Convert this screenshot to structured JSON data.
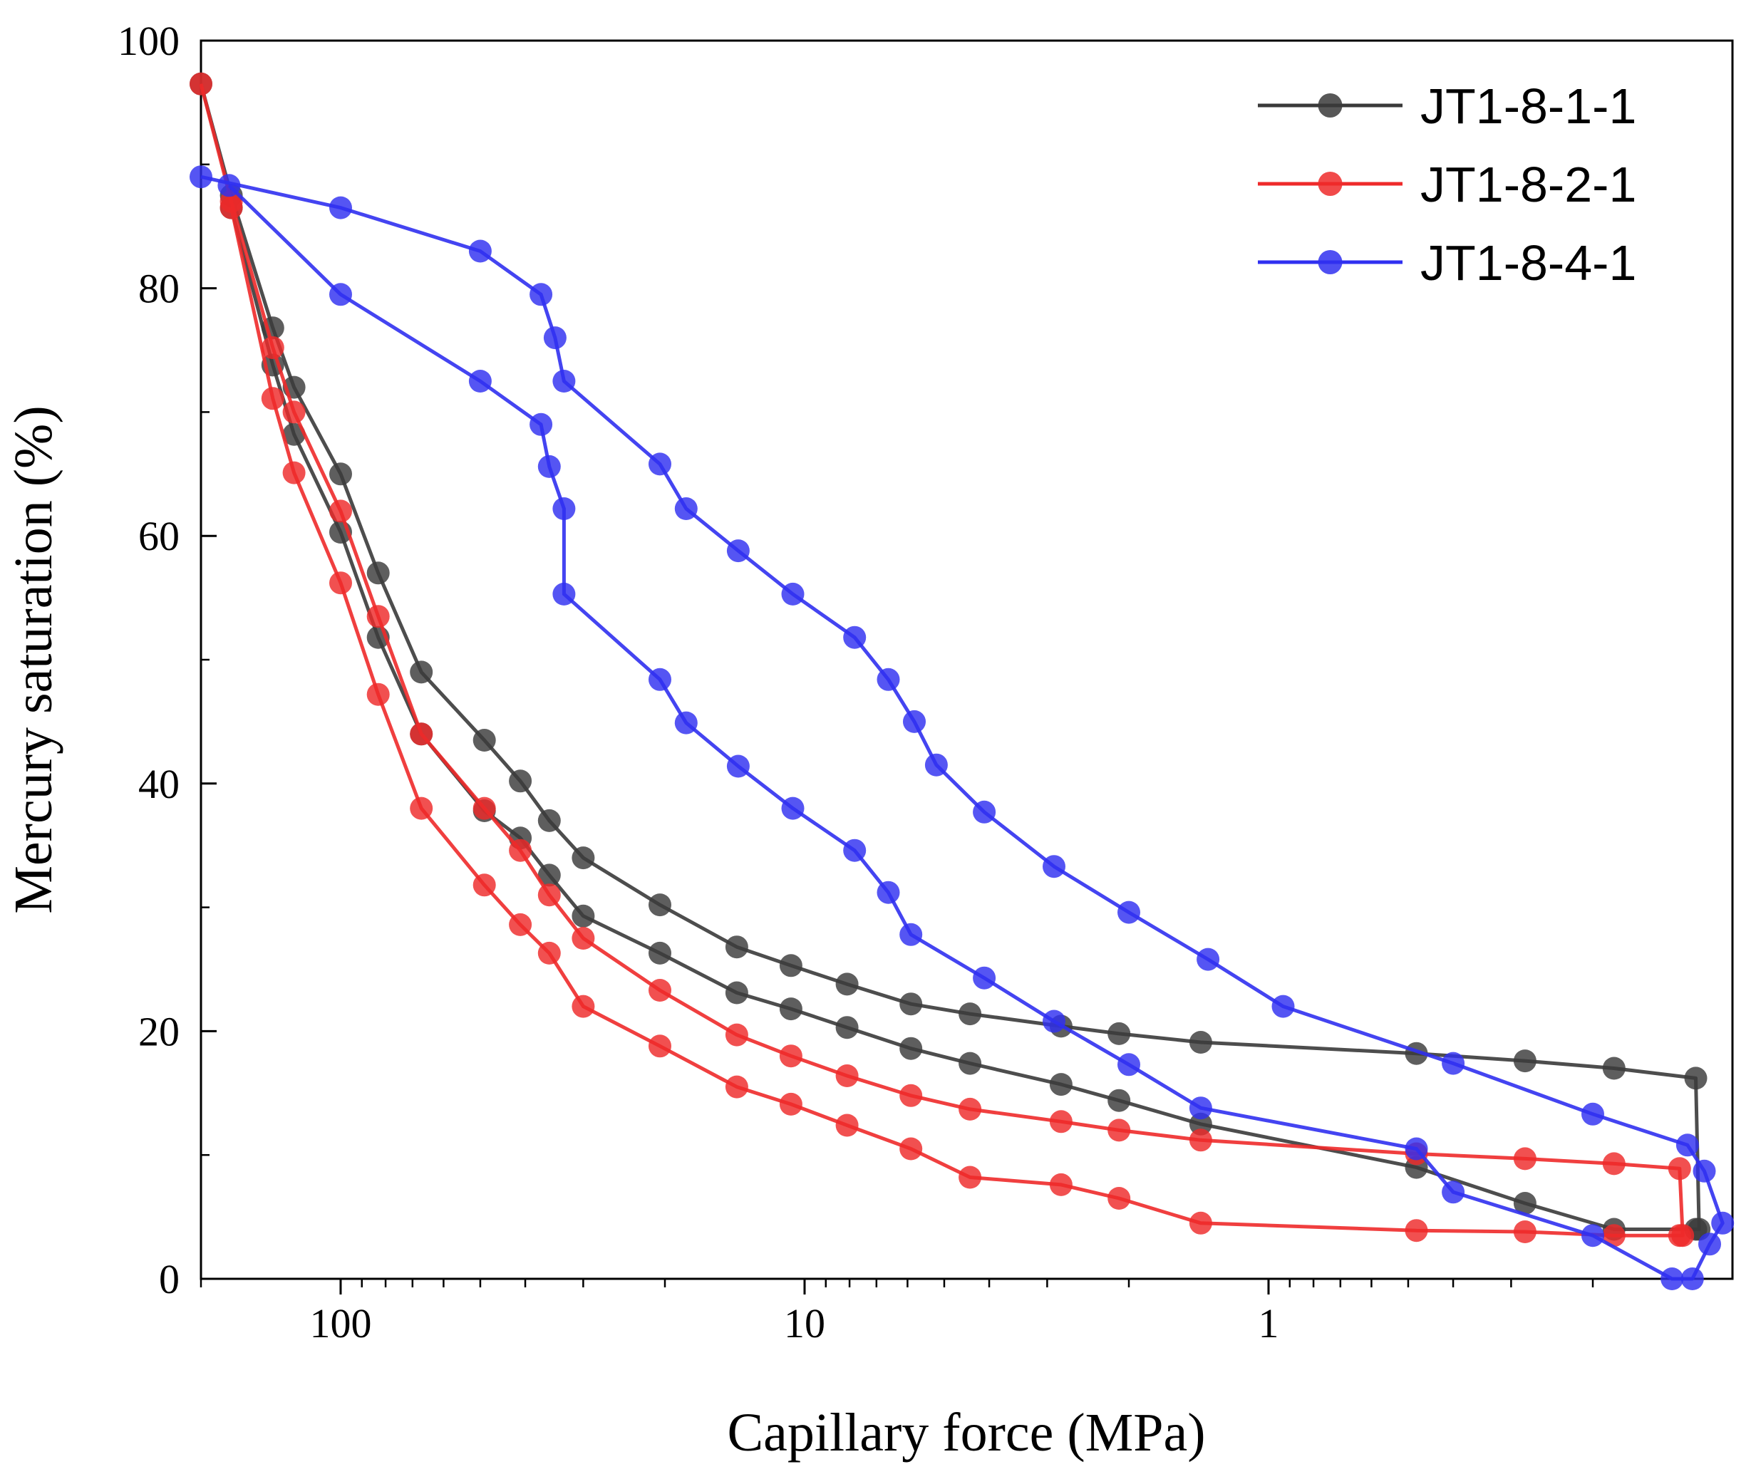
{
  "chart_data": {
    "type": "line",
    "title": "",
    "xlabel": "Capillary force (MPa)",
    "ylabel": "Mercury saturation (%)",
    "xscale": "log",
    "xaxis_reversed": true,
    "xlim": [
      200,
      0.1
    ],
    "ylim": [
      0,
      100
    ],
    "grid": false,
    "legend_position": "top-right",
    "x_ticks": [
      {
        "value": 100,
        "label": "100"
      },
      {
        "value": 10,
        "label": "10"
      },
      {
        "value": 1,
        "label": "1"
      }
    ],
    "x_minor_ticks": [
      200,
      90,
      80,
      70,
      60,
      50,
      40,
      30,
      20,
      9,
      8,
      7,
      6,
      5,
      4,
      3,
      2,
      0.9,
      0.8,
      0.7,
      0.6,
      0.5,
      0.4,
      0.3,
      0.2
    ],
    "y_ticks": [
      {
        "value": 0,
        "label": "0"
      },
      {
        "value": 20,
        "label": "20"
      },
      {
        "value": 40,
        "label": "40"
      },
      {
        "value": 60,
        "label": "60"
      },
      {
        "value": 80,
        "label": "80"
      },
      {
        "value": 100,
        "label": "100"
      }
    ],
    "y_minor_ticks": [
      10,
      30,
      50,
      70,
      90
    ],
    "series": [
      {
        "name": "JT1-8-1-1",
        "color": "#3a3a3a",
        "x": [
          200,
          172,
          140,
          126,
          100,
          83,
          67,
          49,
          41,
          35.5,
          30,
          20.5,
          14,
          10.7,
          8.1,
          5.9,
          4.4,
          2.8,
          2.1,
          1.4,
          0.48,
          0.28,
          0.18,
          0.12,
          0.118,
          0.12,
          0.18,
          0.28,
          0.48,
          1.4,
          2.1,
          2.8,
          4.4,
          5.9,
          8.1,
          10.7,
          14,
          20.5,
          30,
          35.5,
          41,
          49,
          67,
          83,
          100,
          126,
          140,
          172
        ],
        "y": [
          96.5,
          87.5,
          76.8,
          72,
          65,
          57,
          49,
          43.5,
          40.2,
          37,
          34,
          30.2,
          26.8,
          25.3,
          23.8,
          22.2,
          21.4,
          20.4,
          19.8,
          19.1,
          18.2,
          17.6,
          17,
          16.2,
          4,
          4,
          4,
          6.1,
          9,
          12.5,
          14.4,
          15.7,
          17.4,
          18.6,
          20.3,
          21.8,
          23.1,
          26.3,
          29.3,
          32.6,
          35.6,
          37.8,
          44,
          51.8,
          60.3,
          68.2,
          73.8,
          86.5
        ]
      },
      {
        "name": "JT1-8-2-1",
        "color": "#ee2a2a",
        "x": [
          200,
          172,
          140,
          126,
          100,
          83,
          67,
          49,
          41,
          35.5,
          30,
          20.5,
          14,
          10.7,
          8.1,
          5.9,
          4.4,
          2.8,
          2.1,
          1.4,
          0.48,
          0.28,
          0.18,
          0.13,
          0.128,
          0.13,
          0.18,
          0.28,
          0.48,
          1.4,
          2.1,
          2.8,
          4.4,
          5.9,
          8.1,
          10.7,
          14,
          20.5,
          30,
          35.5,
          41,
          49,
          67,
          83,
          100,
          126,
          140,
          172
        ],
        "y": [
          96.5,
          87,
          75.2,
          70,
          62,
          53.5,
          44,
          38,
          34.6,
          31,
          27.5,
          23.3,
          19.7,
          18.0,
          16.4,
          14.8,
          13.7,
          12.7,
          12.0,
          11.2,
          10.1,
          9.7,
          9.3,
          8.9,
          3.5,
          3.5,
          3.5,
          3.8,
          3.9,
          4.5,
          6.5,
          7.6,
          8.2,
          10.5,
          12.4,
          14.1,
          15.5,
          18.8,
          22.0,
          26.3,
          28.6,
          31.8,
          38,
          47.2,
          56.2,
          65.1,
          71.1,
          86.5
        ]
      },
      {
        "name": "JT1-8-4-1",
        "color": "#3030f0",
        "x": [
          200,
          100,
          50,
          37,
          34.5,
          33,
          20.5,
          18,
          13.9,
          10.6,
          7.8,
          6.6,
          5.8,
          5.2,
          4.1,
          2.9,
          2.0,
          1.35,
          0.93,
          0.4,
          0.2,
          0.125,
          0.115,
          0.105,
          0.112,
          0.122,
          0.135,
          0.2,
          0.4,
          0.48,
          1.4,
          2.0,
          2.9,
          4.1,
          5.9,
          6.6,
          7.8,
          10.6,
          13.9,
          18,
          20.5,
          33,
          33,
          35.5,
          37,
          50,
          100,
          174
        ],
        "y": [
          89,
          86.5,
          83,
          79.5,
          76,
          72.5,
          65.8,
          62.2,
          58.8,
          55.3,
          51.8,
          48.4,
          45.0,
          41.5,
          37.7,
          33.3,
          29.6,
          25.8,
          22.0,
          17.4,
          13.3,
          10.8,
          8.7,
          4.5,
          2.8,
          0,
          0,
          3.5,
          7,
          10.5,
          13.8,
          17.3,
          20.8,
          24.3,
          27.8,
          31.2,
          34.6,
          38,
          41.4,
          44.9,
          48.4,
          55.3,
          62.2,
          65.6,
          69,
          72.5,
          79.5,
          88.3
        ]
      }
    ]
  }
}
